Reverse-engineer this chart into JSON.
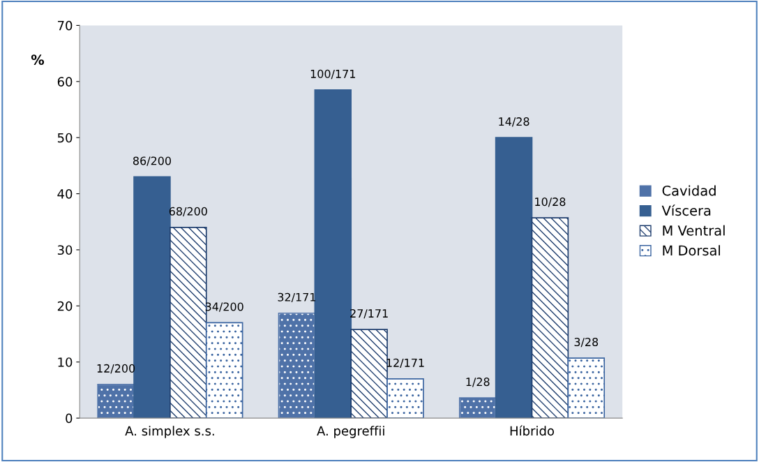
{
  "chart_data": {
    "type": "bar",
    "ylabel": "%",
    "categories": [
      "A. simplex s.s.",
      "A. pegreffii",
      "Híbrido"
    ],
    "series": [
      {
        "name": "Cavidad",
        "color": "#4f72a8",
        "values": [
          6,
          18.7,
          3.6
        ],
        "value_labels": [
          "12/200",
          "32/171",
          "1/28"
        ]
      },
      {
        "name": "Víscera",
        "color": "#365f91",
        "values": [
          43,
          58.5,
          50
        ],
        "value_labels": [
          "86/200",
          "100/171",
          "14/28"
        ]
      },
      {
        "name": "M Ventral",
        "color": "#1f3e6e",
        "values": [
          34,
          15.8,
          35.7
        ],
        "value_labels": [
          "68/200",
          "27/171",
          "10/28"
        ]
      },
      {
        "name": "M Dorsal",
        "color": "#3a64a0",
        "values": [
          17,
          7,
          10.7
        ],
        "value_labels": [
          "34/200",
          "12/171",
          "3/28"
        ]
      }
    ],
    "ylim": [
      0,
      70
    ],
    "yticks": [
      0,
      10,
      20,
      30,
      40,
      50,
      60,
      70
    ],
    "grid": false,
    "legend": "right"
  }
}
